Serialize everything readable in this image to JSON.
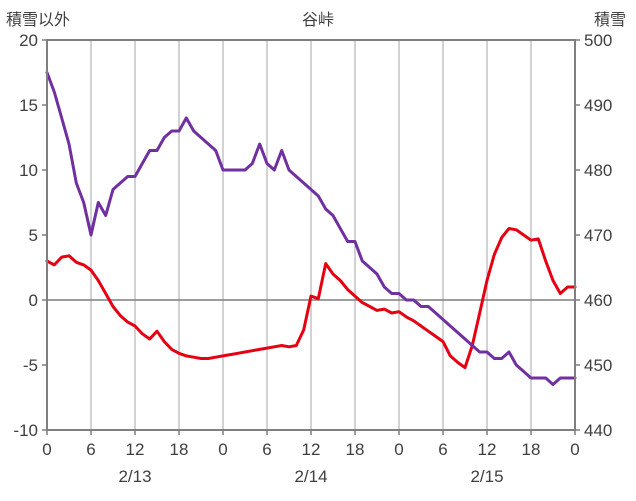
{
  "header": {
    "left_axis_title": "積雪以外",
    "chart_title": "谷峠",
    "right_axis_title": "積雪"
  },
  "colors": {
    "red_line": "#e60012",
    "purple_line": "#7030a0",
    "grid": "#a6a6a6",
    "frame": "#7f7f7f",
    "text": "#404040",
    "background": "#ffffff"
  },
  "chart_data": {
    "type": "line",
    "title": "谷峠",
    "x_unit": "hour",
    "x_range": [
      0,
      72
    ],
    "x_tick_hours": [
      0,
      6,
      12,
      18,
      24,
      30,
      36,
      42,
      48,
      54,
      60,
      66,
      72
    ],
    "x_tick_labels": [
      "0",
      "6",
      "12",
      "18",
      "0",
      "6",
      "12",
      "18",
      "0",
      "6",
      "12",
      "18",
      "0"
    ],
    "date_labels": [
      {
        "label": "2/13",
        "hour": 12
      },
      {
        "label": "2/14",
        "hour": 36
      },
      {
        "label": "2/15",
        "hour": 60
      }
    ],
    "left_axis": {
      "title": "積雪以外",
      "range": [
        -10,
        20
      ],
      "ticks": [
        20,
        15,
        10,
        5,
        0,
        -5,
        -10
      ]
    },
    "right_axis": {
      "title": "積雪",
      "range": [
        440,
        500
      ],
      "ticks": [
        500,
        490,
        480,
        470,
        460,
        450,
        440
      ]
    },
    "zero_line_left_value": 0,
    "grid": "vertical-6h-plus-zero-line",
    "legend": "none",
    "series": [
      {
        "name": "積雪以外",
        "axis": "left",
        "color": "#e60012",
        "x_step_hours": 1,
        "values": [
          3.0,
          2.7,
          3.3,
          3.4,
          2.9,
          2.7,
          2.3,
          1.5,
          0.5,
          -0.5,
          -1.2,
          -1.7,
          -2.0,
          -2.6,
          -3.0,
          -2.4,
          -3.2,
          -3.8,
          -4.1,
          -4.3,
          -4.4,
          -4.5,
          -4.5,
          -4.4,
          -4.3,
          -4.2,
          -4.1,
          -4.0,
          -3.9,
          -3.8,
          -3.7,
          -3.6,
          -3.5,
          -3.6,
          -3.5,
          -2.3,
          0.3,
          0.1,
          2.8,
          2.0,
          1.5,
          0.8,
          0.3,
          -0.2,
          -0.5,
          -0.8,
          -0.7,
          -1.0,
          -0.9,
          -1.3,
          -1.6,
          -2.0,
          -2.4,
          -2.8,
          -3.2,
          -4.3,
          -4.8,
          -5.2,
          -3.5,
          -1.0,
          1.5,
          3.5,
          4.8,
          5.5,
          5.4,
          5.0,
          4.6,
          4.7,
          3.0,
          1.5,
          0.5,
          1.0,
          1.0
        ]
      },
      {
        "name": "積雪",
        "axis": "right",
        "color": "#7030a0",
        "x_step_hours": 1,
        "values": [
          495,
          492,
          488,
          484,
          478,
          475,
          470,
          475,
          473,
          477,
          478,
          479,
          479,
          481,
          483,
          483,
          485,
          486,
          486,
          488,
          486,
          485,
          484,
          483,
          480,
          480,
          480,
          480,
          481,
          484,
          481,
          480,
          483,
          480,
          479,
          478,
          477,
          476,
          474,
          473,
          471,
          469,
          469,
          466,
          465,
          464,
          462,
          461,
          461,
          460,
          460,
          459,
          459,
          458,
          457,
          456,
          455,
          454,
          453,
          452,
          452,
          451,
          451,
          452,
          450,
          449,
          448,
          448,
          448,
          447,
          448,
          448,
          448
        ]
      }
    ]
  }
}
